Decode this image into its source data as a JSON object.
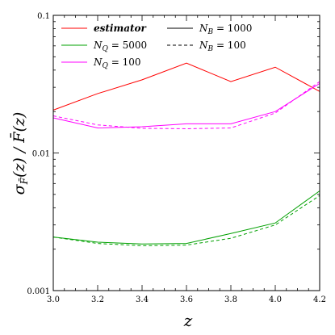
{
  "chart_data": {
    "type": "line",
    "xlabel": "z",
    "ylabel": "σ_F̄(z) / F̄(z)",
    "xlim": [
      3.0,
      4.2
    ],
    "ylim": [
      0.001,
      0.1
    ],
    "yscale": "log",
    "x_ticks": [
      3.0,
      3.2,
      3.4,
      3.6,
      3.8,
      4.0,
      4.2
    ],
    "x_tick_labels": [
      "3.0",
      "3.2",
      "3.4",
      "3.6",
      "3.8",
      "4.0",
      "4.2"
    ],
    "y_ticks": [
      0.001,
      0.01,
      0.1
    ],
    "y_tick_labels": [
      "0.001",
      "0.01",
      "0.1"
    ],
    "grid": false,
    "legend_position": "top-left",
    "legend": [
      {
        "label": "estimator",
        "color": "#ff0000",
        "dash": "solid"
      },
      {
        "label": "N_Q = 5000",
        "color": "#00a000",
        "dash": "solid"
      },
      {
        "label": "N_Q = 100",
        "color": "#ff00ff",
        "dash": "solid"
      },
      {
        "label": "N_B = 1000",
        "color": "#000000",
        "dash": "solid"
      },
      {
        "label": "N_B = 100",
        "color": "#000000",
        "dash": "dashed"
      }
    ],
    "x": [
      3.0,
      3.2,
      3.4,
      3.6,
      3.8,
      4.0,
      4.2
    ],
    "series": [
      {
        "name": "estimator",
        "color": "#ff0000",
        "dash": "solid",
        "values": [
          0.0205,
          0.027,
          0.034,
          0.045,
          0.033,
          0.042,
          0.028
        ]
      },
      {
        "name": "N_Q = 100, N_B = 1000",
        "color": "#ff00ff",
        "dash": "solid",
        "values": [
          0.018,
          0.0152,
          0.0155,
          0.0163,
          0.0163,
          0.02,
          0.032
        ]
      },
      {
        "name": "N_Q = 100, N_B = 100",
        "color": "#ff00ff",
        "dash": "dashed",
        "values": [
          0.0186,
          0.016,
          0.0151,
          0.015,
          0.0152,
          0.0195,
          0.033
        ]
      },
      {
        "name": "N_Q = 5000, N_B = 1000",
        "color": "#00a000",
        "dash": "solid",
        "values": [
          0.00245,
          0.00225,
          0.00218,
          0.0022,
          0.0026,
          0.0031,
          0.0053
        ]
      },
      {
        "name": "N_Q = 5000, N_B = 100",
        "color": "#00a000",
        "dash": "dashed",
        "values": [
          0.00245,
          0.0022,
          0.00212,
          0.00214,
          0.0024,
          0.003,
          0.0049
        ]
      }
    ]
  }
}
